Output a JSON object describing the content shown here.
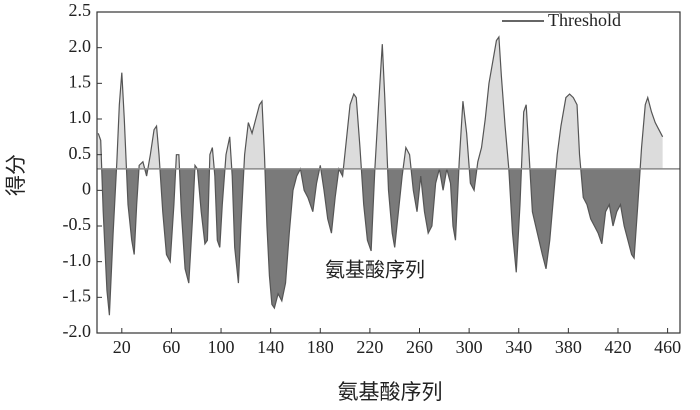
{
  "chart_data": {
    "type": "threshold-area",
    "x_label": "氨基酸序列",
    "y_label": "得分",
    "annotation": "氨基酸序列",
    "threshold": {
      "name": "Threshold",
      "value": 0.3,
      "color": "#8a8a8a"
    },
    "above_color": "#dcdcdc",
    "below_color": "#7a7a7a",
    "line_color": "#555555",
    "xlim": [
      0,
      470
    ],
    "ylim": [
      -2.0,
      2.5
    ],
    "xticks": [
      20,
      60,
      100,
      140,
      180,
      220,
      260,
      300,
      340,
      380,
      420,
      460
    ],
    "yticks": [
      {
        "value": -2.0,
        "label": "-2.0"
      },
      -1.5,
      {
        "value": -1.0,
        "label": "-1.0"
      },
      -0.5,
      0,
      0.5,
      {
        "value": 1.0,
        "label": "1.0"
      },
      1.5,
      {
        "value": 2.0,
        "label": "2.0"
      },
      2.5
    ],
    "legend": "top-right",
    "x": [
      1,
      3,
      5,
      8,
      10,
      13,
      16,
      18,
      20,
      22,
      25,
      28,
      30,
      32,
      34,
      37,
      40,
      43,
      46,
      48,
      50,
      53,
      56,
      59,
      62,
      64,
      66,
      68,
      71,
      74,
      77,
      79,
      81,
      84,
      87,
      89,
      91,
      93,
      95,
      97,
      99,
      101,
      104,
      107,
      109,
      111,
      114,
      116,
      119,
      122,
      125,
      128,
      131,
      133,
      135,
      137,
      139,
      141,
      143,
      146,
      149,
      152,
      155,
      158,
      161,
      164,
      167,
      170,
      174,
      177,
      180,
      183,
      186,
      189,
      192,
      195,
      198,
      201,
      204,
      207,
      209,
      212,
      215,
      218,
      221,
      224,
      227,
      230,
      232,
      235,
      238,
      240,
      243,
      246,
      249,
      252,
      255,
      258,
      261,
      264,
      267,
      270,
      273,
      276,
      279,
      282,
      285,
      287,
      289,
      292,
      295,
      298,
      301,
      304,
      307,
      310,
      313,
      316,
      319,
      322,
      324,
      326,
      329,
      332,
      335,
      338,
      341,
      344,
      346,
      348,
      351,
      355,
      359,
      362,
      365,
      368,
      371,
      374,
      378,
      381,
      384,
      387,
      389,
      392,
      395,
      398,
      401,
      404,
      407,
      410,
      413,
      416,
      419,
      422,
      425,
      428,
      431,
      433,
      436,
      439,
      442,
      444,
      447,
      450,
      453,
      456
    ],
    "series": [
      {
        "values": [
          0.8,
          0.7,
          -0.3,
          -1.4,
          -1.75,
          -0.6,
          0.4,
          1.2,
          1.65,
          1.0,
          -0.2,
          -0.7,
          -0.9,
          -0.2,
          0.35,
          0.4,
          0.2,
          0.5,
          0.85,
          0.9,
          0.5,
          -0.3,
          -0.9,
          -1.0,
          -0.2,
          0.5,
          0.5,
          -0.3,
          -1.1,
          -1.3,
          -0.4,
          0.35,
          0.3,
          -0.3,
          -0.75,
          -0.7,
          0.5,
          0.6,
          0.2,
          -0.7,
          -0.8,
          -0.2,
          0.5,
          0.75,
          0.2,
          -0.8,
          -1.3,
          -0.5,
          0.5,
          0.95,
          0.8,
          1.0,
          1.2,
          1.25,
          0.5,
          -0.5,
          -1.2,
          -1.6,
          -1.65,
          -1.45,
          -1.55,
          -1.3,
          -0.6,
          0.0,
          0.2,
          0.3,
          0.0,
          -0.1,
          -0.3,
          0.1,
          0.35,
          0.0,
          -0.4,
          -0.6,
          -0.1,
          0.3,
          0.2,
          0.7,
          1.2,
          1.35,
          1.3,
          0.6,
          -0.2,
          -0.7,
          -0.85,
          0.3,
          1.2,
          2.05,
          1.3,
          0.0,
          -0.6,
          -0.8,
          -0.3,
          0.2,
          0.6,
          0.5,
          0.0,
          -0.3,
          0.2,
          -0.3,
          -0.6,
          -0.5,
          0.1,
          0.3,
          0.0,
          0.3,
          0.1,
          -0.5,
          -0.7,
          0.4,
          1.25,
          0.8,
          0.1,
          0.0,
          0.4,
          0.6,
          1.0,
          1.5,
          1.8,
          2.1,
          2.15,
          1.6,
          0.9,
          0.3,
          -0.6,
          -1.15,
          -0.2,
          1.1,
          1.2,
          0.6,
          -0.3,
          -0.6,
          -0.9,
          -1.1,
          -0.7,
          -0.1,
          0.5,
          0.9,
          1.3,
          1.35,
          1.3,
          1.2,
          0.5,
          -0.1,
          -0.2,
          -0.4,
          -0.5,
          -0.6,
          -0.75,
          -0.3,
          -0.2,
          -0.5,
          -0.3,
          -0.2,
          -0.5,
          -0.7,
          -0.9,
          -0.95,
          -0.2,
          0.6,
          1.2,
          1.3,
          1.1,
          0.95,
          0.85,
          0.75
        ]
      }
    ]
  }
}
